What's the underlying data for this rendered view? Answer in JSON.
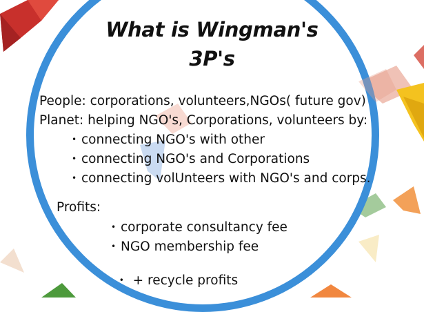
{
  "title": {
    "line1": "What is Wingman's",
    "line2": "3P's"
  },
  "people_line": "People: corporations, volunteers,NGOs( future gov)",
  "planet_line": "Planet: helping NGO's, Corporations, volunteers by:",
  "planet_bullets": [
    "connecting NGO's with other",
    "connecting NGO's and Corporations",
    "connecting volUnteers with NGO's and corps."
  ],
  "profits_label": "Profits:",
  "profits_bullets": [
    "corporate consultancy fee",
    "NGO membership fee",
    " + recycle profits"
  ],
  "colors": {
    "ring": "#3b8fd9",
    "text": "#111111"
  }
}
